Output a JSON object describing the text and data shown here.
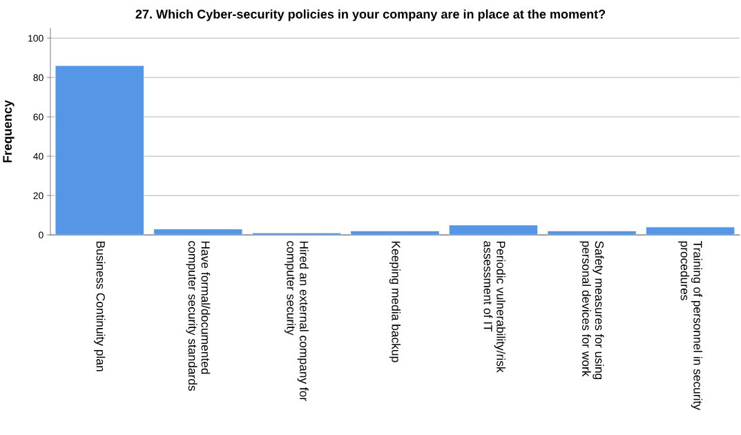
{
  "chart_data": {
    "type": "bar",
    "title": "27. Which Cyber-security policies in your company are in place at the moment?",
    "ylabel": "Frequency",
    "categories": [
      "Business Continuity plan",
      "Have formal/documented\ncomputer security standards",
      "Hired an external company for\ncomputer security",
      "Keeping media backup",
      "Periodic vulnerability/risk\nassessment of IT",
      "Safety measures for using\npersonal devices for work",
      "Training of personnel in security\nprocedures"
    ],
    "values": [
      86,
      3,
      1,
      2,
      5,
      2,
      4
    ],
    "color": "#5596e6",
    "ylim": [
      0,
      105
    ],
    "yticks": [
      0,
      20,
      40,
      60,
      80,
      100
    ],
    "grid": "y"
  }
}
